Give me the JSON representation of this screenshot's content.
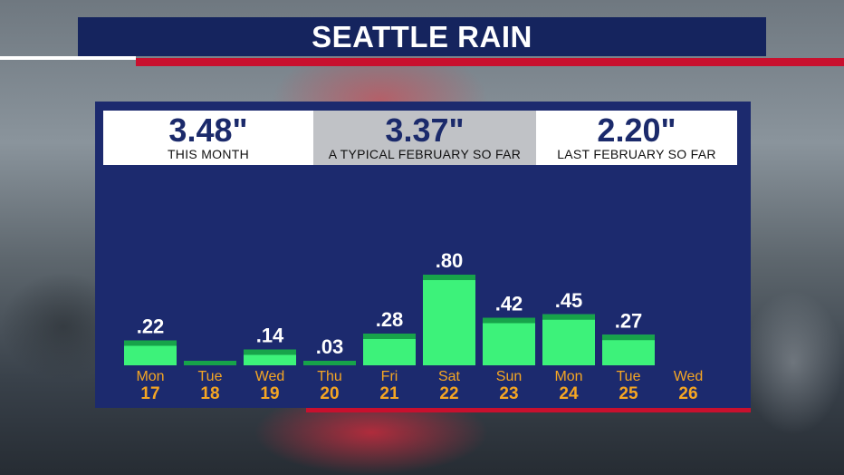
{
  "title": "SEATTLE RAIN",
  "stats": [
    {
      "value": "3.48\"",
      "label": "THIS MONTH"
    },
    {
      "value": "3.37\"",
      "label": "A TYPICAL FEBRUARY SO FAR"
    },
    {
      "value": "2.20\"",
      "label": "LAST FEBRUARY SO FAR"
    }
  ],
  "colors": {
    "panel": "#1c2a6e",
    "bar": "#3df27a",
    "bar_cap": "#17a34a",
    "day_name": "#f5a623",
    "day_number": "#f5a623",
    "value_label": "#ffffff"
  },
  "chart_data": {
    "type": "bar",
    "categories": [
      "Mon",
      "Tue",
      "Wed",
      "Thu",
      "Fri",
      "Sat",
      "Sun",
      "Mon",
      "Tue",
      "Wed"
    ],
    "day_numbers": [
      "17",
      "18",
      "19",
      "20",
      "21",
      "22",
      "23",
      "24",
      "25",
      "26"
    ],
    "values": [
      0.22,
      0,
      0.14,
      0.03,
      0.28,
      0.8,
      0.42,
      0.45,
      0.27,
      null
    ],
    "value_labels": [
      ".22",
      "",
      ".14",
      ".03",
      ".28",
      ".80",
      ".42",
      ".45",
      ".27",
      ""
    ],
    "title": "SEATTLE RAIN",
    "xlabel": "",
    "ylabel": "",
    "grid": false
  }
}
